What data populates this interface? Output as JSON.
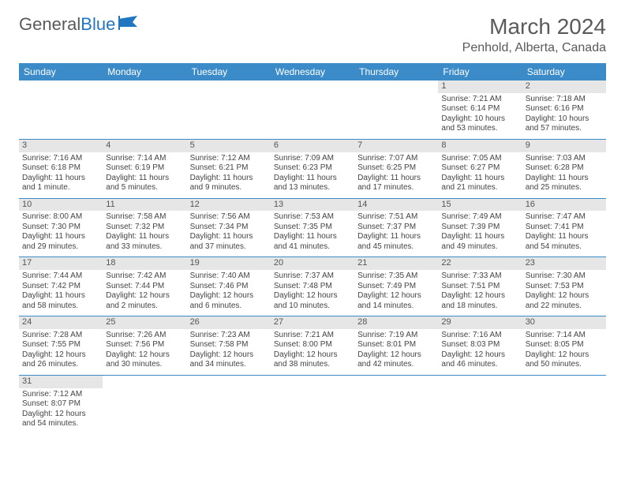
{
  "logo": {
    "text1": "General",
    "text2": "Blue"
  },
  "title": "March 2024",
  "location": "Penhold, Alberta, Canada",
  "colors": {
    "header_bg": "#3b8bc9",
    "header_text": "#ffffff",
    "daynum_bg": "#e6e6e6",
    "text": "#444444",
    "logo_gray": "#5a5a5a",
    "logo_blue": "#2176c1"
  },
  "weekdays": [
    "Sunday",
    "Monday",
    "Tuesday",
    "Wednesday",
    "Thursday",
    "Friday",
    "Saturday"
  ],
  "weeks": [
    [
      null,
      null,
      null,
      null,
      null,
      {
        "n": "1",
        "sr": "Sunrise: 7:21 AM",
        "ss": "Sunset: 6:14 PM",
        "d1": "Daylight: 10 hours",
        "d2": "and 53 minutes."
      },
      {
        "n": "2",
        "sr": "Sunrise: 7:18 AM",
        "ss": "Sunset: 6:16 PM",
        "d1": "Daylight: 10 hours",
        "d2": "and 57 minutes."
      }
    ],
    [
      {
        "n": "3",
        "sr": "Sunrise: 7:16 AM",
        "ss": "Sunset: 6:18 PM",
        "d1": "Daylight: 11 hours",
        "d2": "and 1 minute."
      },
      {
        "n": "4",
        "sr": "Sunrise: 7:14 AM",
        "ss": "Sunset: 6:19 PM",
        "d1": "Daylight: 11 hours",
        "d2": "and 5 minutes."
      },
      {
        "n": "5",
        "sr": "Sunrise: 7:12 AM",
        "ss": "Sunset: 6:21 PM",
        "d1": "Daylight: 11 hours",
        "d2": "and 9 minutes."
      },
      {
        "n": "6",
        "sr": "Sunrise: 7:09 AM",
        "ss": "Sunset: 6:23 PM",
        "d1": "Daylight: 11 hours",
        "d2": "and 13 minutes."
      },
      {
        "n": "7",
        "sr": "Sunrise: 7:07 AM",
        "ss": "Sunset: 6:25 PM",
        "d1": "Daylight: 11 hours",
        "d2": "and 17 minutes."
      },
      {
        "n": "8",
        "sr": "Sunrise: 7:05 AM",
        "ss": "Sunset: 6:27 PM",
        "d1": "Daylight: 11 hours",
        "d2": "and 21 minutes."
      },
      {
        "n": "9",
        "sr": "Sunrise: 7:03 AM",
        "ss": "Sunset: 6:28 PM",
        "d1": "Daylight: 11 hours",
        "d2": "and 25 minutes."
      }
    ],
    [
      {
        "n": "10",
        "sr": "Sunrise: 8:00 AM",
        "ss": "Sunset: 7:30 PM",
        "d1": "Daylight: 11 hours",
        "d2": "and 29 minutes."
      },
      {
        "n": "11",
        "sr": "Sunrise: 7:58 AM",
        "ss": "Sunset: 7:32 PM",
        "d1": "Daylight: 11 hours",
        "d2": "and 33 minutes."
      },
      {
        "n": "12",
        "sr": "Sunrise: 7:56 AM",
        "ss": "Sunset: 7:34 PM",
        "d1": "Daylight: 11 hours",
        "d2": "and 37 minutes."
      },
      {
        "n": "13",
        "sr": "Sunrise: 7:53 AM",
        "ss": "Sunset: 7:35 PM",
        "d1": "Daylight: 11 hours",
        "d2": "and 41 minutes."
      },
      {
        "n": "14",
        "sr": "Sunrise: 7:51 AM",
        "ss": "Sunset: 7:37 PM",
        "d1": "Daylight: 11 hours",
        "d2": "and 45 minutes."
      },
      {
        "n": "15",
        "sr": "Sunrise: 7:49 AM",
        "ss": "Sunset: 7:39 PM",
        "d1": "Daylight: 11 hours",
        "d2": "and 49 minutes."
      },
      {
        "n": "16",
        "sr": "Sunrise: 7:47 AM",
        "ss": "Sunset: 7:41 PM",
        "d1": "Daylight: 11 hours",
        "d2": "and 54 minutes."
      }
    ],
    [
      {
        "n": "17",
        "sr": "Sunrise: 7:44 AM",
        "ss": "Sunset: 7:42 PM",
        "d1": "Daylight: 11 hours",
        "d2": "and 58 minutes."
      },
      {
        "n": "18",
        "sr": "Sunrise: 7:42 AM",
        "ss": "Sunset: 7:44 PM",
        "d1": "Daylight: 12 hours",
        "d2": "and 2 minutes."
      },
      {
        "n": "19",
        "sr": "Sunrise: 7:40 AM",
        "ss": "Sunset: 7:46 PM",
        "d1": "Daylight: 12 hours",
        "d2": "and 6 minutes."
      },
      {
        "n": "20",
        "sr": "Sunrise: 7:37 AM",
        "ss": "Sunset: 7:48 PM",
        "d1": "Daylight: 12 hours",
        "d2": "and 10 minutes."
      },
      {
        "n": "21",
        "sr": "Sunrise: 7:35 AM",
        "ss": "Sunset: 7:49 PM",
        "d1": "Daylight: 12 hours",
        "d2": "and 14 minutes."
      },
      {
        "n": "22",
        "sr": "Sunrise: 7:33 AM",
        "ss": "Sunset: 7:51 PM",
        "d1": "Daylight: 12 hours",
        "d2": "and 18 minutes."
      },
      {
        "n": "23",
        "sr": "Sunrise: 7:30 AM",
        "ss": "Sunset: 7:53 PM",
        "d1": "Daylight: 12 hours",
        "d2": "and 22 minutes."
      }
    ],
    [
      {
        "n": "24",
        "sr": "Sunrise: 7:28 AM",
        "ss": "Sunset: 7:55 PM",
        "d1": "Daylight: 12 hours",
        "d2": "and 26 minutes."
      },
      {
        "n": "25",
        "sr": "Sunrise: 7:26 AM",
        "ss": "Sunset: 7:56 PM",
        "d1": "Daylight: 12 hours",
        "d2": "and 30 minutes."
      },
      {
        "n": "26",
        "sr": "Sunrise: 7:23 AM",
        "ss": "Sunset: 7:58 PM",
        "d1": "Daylight: 12 hours",
        "d2": "and 34 minutes."
      },
      {
        "n": "27",
        "sr": "Sunrise: 7:21 AM",
        "ss": "Sunset: 8:00 PM",
        "d1": "Daylight: 12 hours",
        "d2": "and 38 minutes."
      },
      {
        "n": "28",
        "sr": "Sunrise: 7:19 AM",
        "ss": "Sunset: 8:01 PM",
        "d1": "Daylight: 12 hours",
        "d2": "and 42 minutes."
      },
      {
        "n": "29",
        "sr": "Sunrise: 7:16 AM",
        "ss": "Sunset: 8:03 PM",
        "d1": "Daylight: 12 hours",
        "d2": "and 46 minutes."
      },
      {
        "n": "30",
        "sr": "Sunrise: 7:14 AM",
        "ss": "Sunset: 8:05 PM",
        "d1": "Daylight: 12 hours",
        "d2": "and 50 minutes."
      }
    ],
    [
      {
        "n": "31",
        "sr": "Sunrise: 7:12 AM",
        "ss": "Sunset: 8:07 PM",
        "d1": "Daylight: 12 hours",
        "d2": "and 54 minutes."
      },
      null,
      null,
      null,
      null,
      null,
      null
    ]
  ]
}
